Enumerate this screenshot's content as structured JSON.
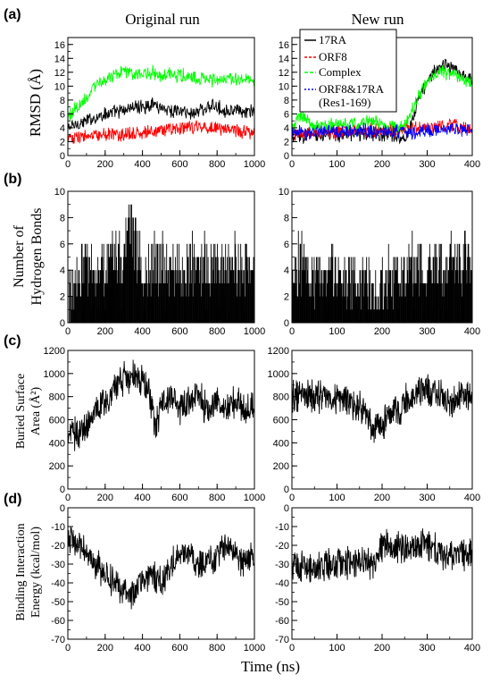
{
  "figure": {
    "col_titles": [
      "Original run",
      "New run"
    ],
    "panel_letters": [
      "(a)",
      "(b)",
      "(c)",
      "(d)"
    ],
    "xlabel": "Time (ns)"
  },
  "chart_data": [
    {
      "id": "a-left",
      "type": "line",
      "panel": "(a)",
      "column": "Original run",
      "ylabel": "RMSD (Å)",
      "xlim": [
        0,
        1000
      ],
      "ylim": [
        0,
        17
      ],
      "xticks": [
        0,
        200,
        400,
        600,
        800,
        1000
      ],
      "yticks": [
        0,
        2,
        4,
        6,
        8,
        10,
        12,
        14,
        16
      ],
      "series": [
        {
          "color": "#000000",
          "x": [
            0,
            50,
            100,
            150,
            200,
            250,
            300,
            350,
            400,
            450,
            500,
            550,
            600,
            650,
            700,
            750,
            800,
            850,
            900,
            950,
            1000
          ],
          "y": [
            4.0,
            4.5,
            5.0,
            5.5,
            6.0,
            6.2,
            6.5,
            7.0,
            7.0,
            7.5,
            7.0,
            6.5,
            6.5,
            6.0,
            6.5,
            7.0,
            7.0,
            6.5,
            6.5,
            6.0,
            6.5
          ]
        },
        {
          "color": "#ff0000",
          "x": [
            0,
            100,
            200,
            300,
            400,
            500,
            550,
            600,
            700,
            800,
            900,
            1000
          ],
          "y": [
            2.5,
            2.7,
            3.0,
            3.0,
            3.2,
            3.6,
            4.0,
            3.8,
            4.2,
            4.0,
            3.6,
            3.4
          ]
        },
        {
          "color": "#00ff00",
          "x": [
            0,
            50,
            100,
            150,
            200,
            250,
            300,
            350,
            400,
            450,
            500,
            550,
            600,
            650,
            700,
            750,
            800,
            850,
            900,
            950,
            1000
          ],
          "y": [
            5.5,
            7.0,
            8.5,
            10.0,
            11.0,
            11.5,
            12.0,
            12.0,
            11.8,
            12.0,
            11.5,
            12.0,
            11.5,
            11.5,
            11.0,
            11.0,
            10.8,
            11.0,
            11.0,
            11.0,
            10.5
          ]
        }
      ]
    },
    {
      "id": "a-right",
      "type": "line",
      "panel": "(a)",
      "column": "New run",
      "xlim": [
        0,
        400
      ],
      "ylim": [
        0,
        17
      ],
      "xticks": [
        0,
        100,
        200,
        300,
        400
      ],
      "yticks": [
        0,
        2,
        4,
        6,
        8,
        10,
        12,
        14,
        16
      ],
      "legend": [
        "17RA",
        "ORF8",
        "Complex",
        "ORF8&17RA",
        "(Res1-169)"
      ],
      "series": [
        {
          "name": "17RA",
          "color": "#000000",
          "x": [
            0,
            50,
            100,
            150,
            200,
            240,
            250,
            260,
            280,
            300,
            320,
            340,
            360,
            380,
            400
          ],
          "y": [
            2.5,
            3.0,
            3.0,
            3.2,
            3.0,
            2.8,
            2.5,
            4.0,
            8.0,
            10.5,
            12.5,
            13.0,
            12.5,
            11.5,
            11.0
          ]
        },
        {
          "name": "ORF8",
          "color": "#ff0000",
          "x": [
            0,
            50,
            100,
            150,
            200,
            250,
            300,
            350,
            400
          ],
          "y": [
            3.0,
            3.2,
            3.5,
            3.5,
            3.6,
            3.8,
            4.0,
            4.2,
            4.0
          ]
        },
        {
          "name": "Complex",
          "color": "#00ff00",
          "x": [
            0,
            20,
            50,
            100,
            150,
            180,
            200,
            240,
            250,
            260,
            280,
            300,
            320,
            340,
            360,
            380,
            400
          ],
          "y": [
            4.0,
            6.0,
            4.0,
            4.5,
            4.5,
            5.0,
            4.5,
            4.0,
            4.0,
            5.5,
            8.5,
            10.5,
            12.0,
            12.0,
            11.5,
            11.0,
            10.5
          ]
        },
        {
          "name": "ORF8&17RA (Res1-169)",
          "color": "#0000ff",
          "x": [
            0,
            50,
            100,
            150,
            200,
            250,
            300,
            350,
            400
          ],
          "y": [
            3.2,
            3.4,
            3.6,
            3.6,
            3.6,
            3.4,
            3.6,
            3.8,
            3.6
          ]
        }
      ]
    },
    {
      "id": "b-left",
      "type": "bar",
      "panel": "(b)",
      "column": "Original run",
      "ylabel": "Number of Hydrogen Bonds",
      "xlim": [
        0,
        1000
      ],
      "ylim": [
        0,
        10
      ],
      "xticks": [
        0,
        200,
        400,
        600,
        800,
        1000
      ],
      "yticks": [
        0,
        2,
        4,
        6,
        8,
        10
      ],
      "x": [
        0,
        20,
        40,
        60,
        80,
        100,
        200,
        300,
        330,
        400,
        500,
        600,
        700,
        800,
        900,
        1000
      ],
      "values": [
        3,
        4,
        5,
        6,
        6,
        6,
        6,
        7,
        9,
        6,
        6,
        6,
        6,
        6,
        6,
        6
      ]
    },
    {
      "id": "b-right",
      "type": "bar",
      "panel": "(b)",
      "column": "New run",
      "xlim": [
        0,
        400
      ],
      "ylim": [
        0,
        10
      ],
      "xticks": [
        0,
        100,
        200,
        300,
        400
      ],
      "yticks": [
        0,
        2,
        4,
        6,
        8,
        10
      ],
      "x": [
        0,
        50,
        100,
        150,
        200,
        250,
        300,
        350,
        400
      ],
      "values": [
        6,
        5,
        5,
        5,
        4,
        6,
        6,
        6,
        6
      ]
    },
    {
      "id": "c-left",
      "type": "line",
      "panel": "(c)",
      "column": "Original run",
      "ylabel": "Buried Surface Area (Å²)",
      "xlim": [
        0,
        1000
      ],
      "ylim": [
        0,
        1200
      ],
      "xticks": [
        0,
        200,
        400,
        600,
        800,
        1000
      ],
      "yticks": [
        0,
        200,
        400,
        600,
        800,
        1000,
        1200
      ],
      "x": [
        0,
        50,
        100,
        150,
        200,
        250,
        300,
        350,
        400,
        450,
        470,
        500,
        550,
        600,
        650,
        700,
        750,
        800,
        850,
        900,
        950,
        1000
      ],
      "y": [
        450,
        500,
        550,
        650,
        750,
        850,
        950,
        1000,
        950,
        750,
        500,
        750,
        800,
        700,
        750,
        800,
        700,
        750,
        700,
        750,
        700,
        750
      ]
    },
    {
      "id": "c-right",
      "type": "line",
      "panel": "(c)",
      "column": "New run",
      "xlim": [
        0,
        400
      ],
      "ylim": [
        0,
        1200
      ],
      "xticks": [
        0,
        100,
        200,
        300,
        400
      ],
      "yticks": [
        0,
        200,
        400,
        600,
        800,
        1000,
        1200
      ],
      "x": [
        0,
        50,
        100,
        150,
        180,
        200,
        220,
        250,
        280,
        300,
        330,
        350,
        380,
        400
      ],
      "y": [
        800,
        800,
        780,
        720,
        550,
        550,
        650,
        750,
        850,
        880,
        800,
        750,
        800,
        780
      ]
    },
    {
      "id": "d-left",
      "type": "line",
      "panel": "(d)",
      "column": "Original run",
      "ylabel": "Binding Interaction Energy (kcal/mol)",
      "xlim": [
        0,
        1000
      ],
      "ylim": [
        -70,
        0
      ],
      "xticks": [
        0,
        200,
        400,
        600,
        800,
        1000
      ],
      "yticks": [
        -70,
        -60,
        -50,
        -40,
        -30,
        -20,
        -10,
        0
      ],
      "x": [
        0,
        50,
        100,
        150,
        200,
        250,
        300,
        350,
        400,
        450,
        500,
        550,
        600,
        650,
        700,
        750,
        800,
        850,
        900,
        950,
        1000
      ],
      "y": [
        -15,
        -20,
        -25,
        -30,
        -35,
        -40,
        -45,
        -45,
        -40,
        -35,
        -40,
        -30,
        -25,
        -25,
        -30,
        -30,
        -25,
        -20,
        -25,
        -30,
        -25
      ]
    },
    {
      "id": "d-right",
      "type": "line",
      "panel": "(d)",
      "column": "New run",
      "xlim": [
        0,
        400
      ],
      "ylim": [
        -70,
        0
      ],
      "xticks": [
        0,
        100,
        200,
        300,
        400
      ],
      "yticks": [
        -70,
        -60,
        -50,
        -40,
        -30,
        -20,
        -10,
        0
      ],
      "x": [
        0,
        50,
        100,
        150,
        180,
        200,
        250,
        300,
        350,
        400
      ],
      "y": [
        -30,
        -32,
        -30,
        -28,
        -30,
        -20,
        -20,
        -20,
        -25,
        -25
      ]
    }
  ]
}
